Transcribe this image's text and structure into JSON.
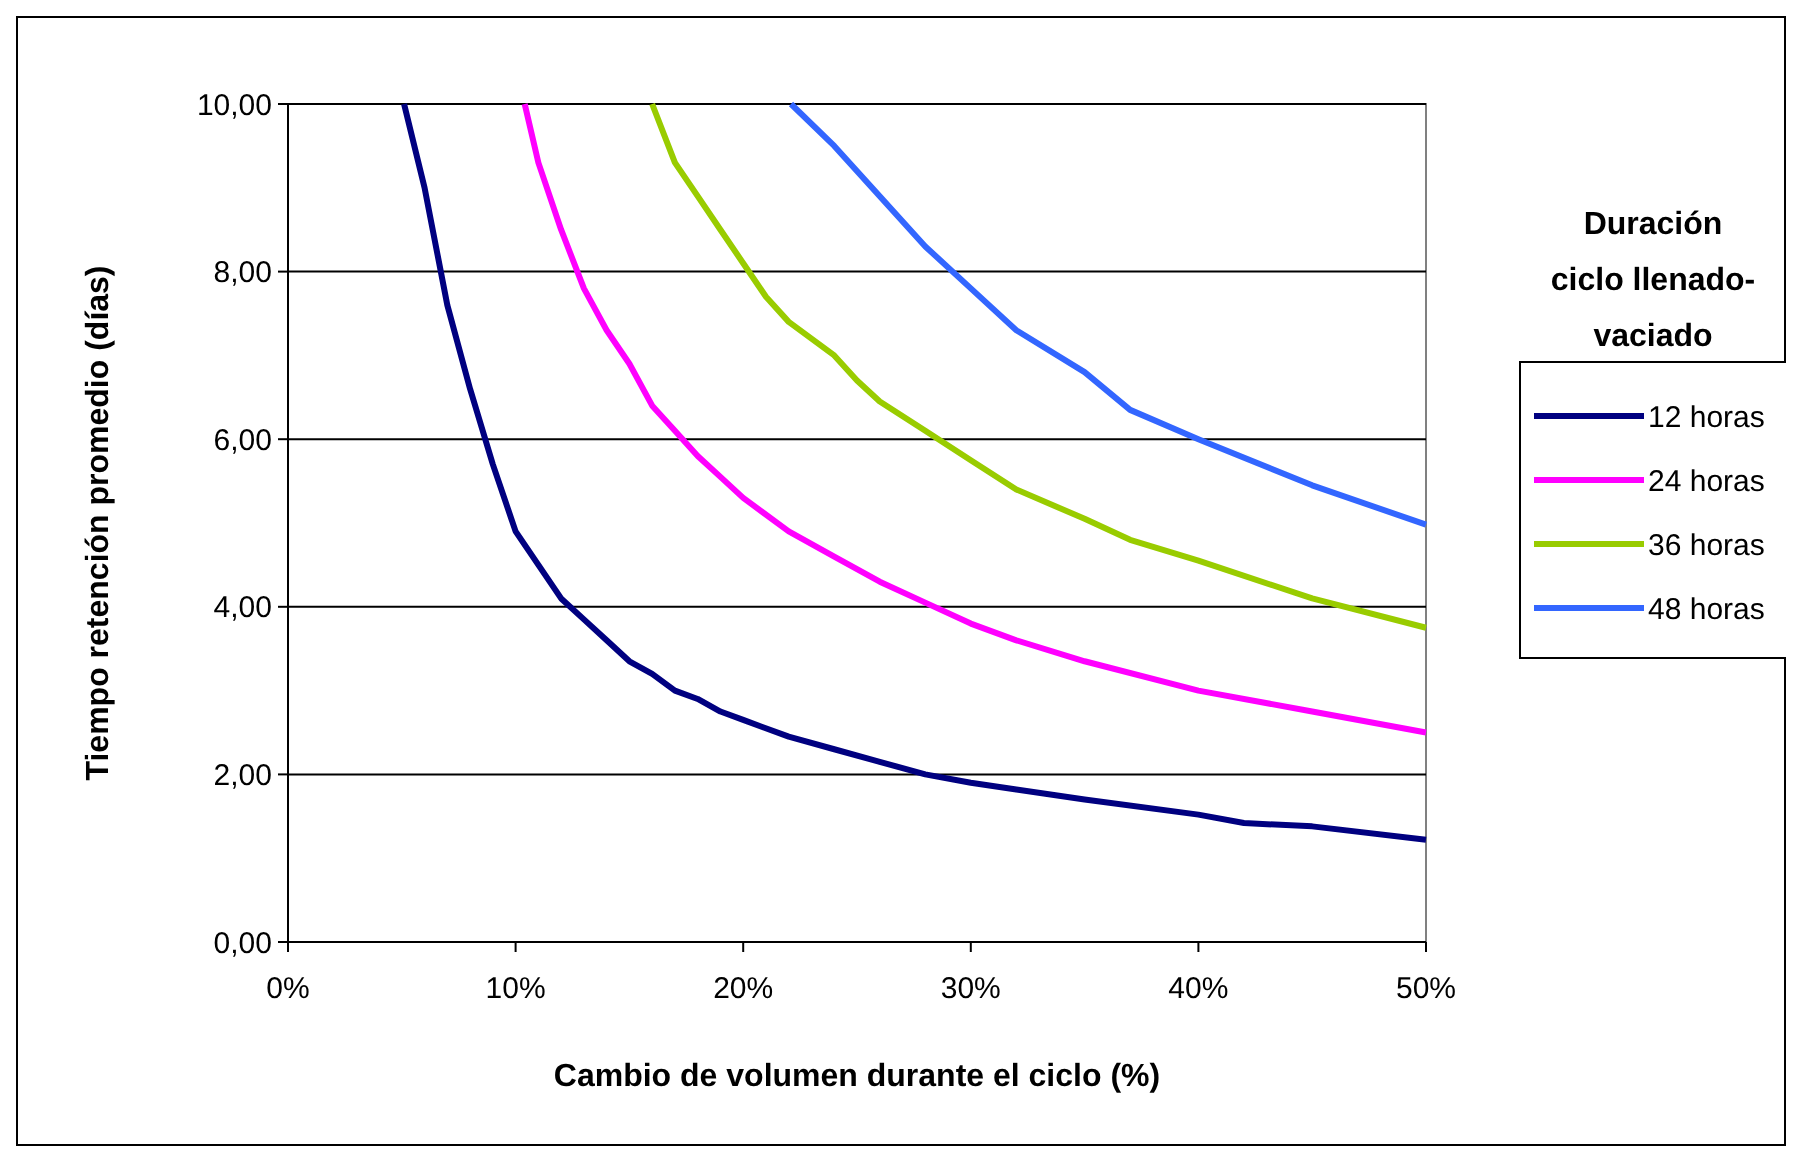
{
  "chart_data": {
    "type": "line",
    "xlabel": "Cambio de volumen durante el ciclo (%)",
    "ylabel": "Tiempo retención promedio (días)",
    "legend_title": "Duración ciclo llenado-vaciado",
    "legend": "right",
    "grid": "y",
    "line_style": "solid",
    "xlim": [
      0,
      50
    ],
    "xticks": [
      {
        "value": 0,
        "label": "0%"
      },
      {
        "value": 10,
        "label": "10%"
      },
      {
        "value": 20,
        "label": "20%"
      },
      {
        "value": 30,
        "label": "30%"
      },
      {
        "value": 40,
        "label": "40%"
      },
      {
        "value": 50,
        "label": "50%"
      }
    ],
    "ylim": [
      0,
      10
    ],
    "yticks": [
      {
        "value": 0,
        "label": "0,00"
      },
      {
        "value": 2,
        "label": "2,00"
      },
      {
        "value": 4,
        "label": "4,00"
      },
      {
        "value": 6,
        "label": "6,00"
      },
      {
        "value": 8,
        "label": "8,00"
      },
      {
        "value": 10,
        "label": "10,00"
      }
    ],
    "series": [
      {
        "name": "12 horas",
        "color": "#000080",
        "x": [
          5.1,
          6,
          7,
          8,
          9,
          10,
          11,
          12,
          13,
          14,
          15,
          16,
          17,
          18,
          19,
          20,
          22,
          24,
          26,
          28,
          30,
          32,
          35,
          40,
          42,
          45,
          50
        ],
        "values": [
          10,
          9,
          7.6,
          6.6,
          5.7,
          4.9,
          4.5,
          4.1,
          3.85,
          3.6,
          3.35,
          3.2,
          3.0,
          2.9,
          2.75,
          2.65,
          2.45,
          2.3,
          2.15,
          2.0,
          1.9,
          1.82,
          1.7,
          1.52,
          1.42,
          1.38,
          1.22
        ]
      },
      {
        "name": "24 horas",
        "color": "#ff00ff",
        "x": [
          10.4,
          11,
          12,
          13,
          14,
          15,
          16,
          17,
          18,
          19,
          20,
          22,
          24,
          26,
          28,
          30,
          32,
          35,
          40,
          45,
          50
        ],
        "values": [
          10,
          9.3,
          8.5,
          7.8,
          7.3,
          6.9,
          6.4,
          6.1,
          5.8,
          5.55,
          5.3,
          4.9,
          4.6,
          4.3,
          4.05,
          3.8,
          3.6,
          3.35,
          3.0,
          2.75,
          2.5
        ]
      },
      {
        "name": "36 horas",
        "color": "#99cc00",
        "x": [
          16,
          17,
          18,
          19,
          20,
          21,
          22,
          24,
          25,
          26,
          28,
          30,
          32,
          35,
          37,
          40,
          45,
          50
        ],
        "values": [
          10,
          9.3,
          8.9,
          8.5,
          8.1,
          7.7,
          7.4,
          7.0,
          6.7,
          6.45,
          6.1,
          5.75,
          5.4,
          5.05,
          4.8,
          4.55,
          4.1,
          3.75
        ]
      },
      {
        "name": "48 horas",
        "color": "#3366ff",
        "x": [
          22.1,
          24,
          26,
          28,
          30,
          32,
          35,
          37,
          40,
          45,
          50
        ],
        "values": [
          10,
          9.5,
          8.9,
          8.3,
          7.8,
          7.3,
          6.8,
          6.35,
          6.0,
          5.45,
          4.98
        ]
      }
    ]
  }
}
